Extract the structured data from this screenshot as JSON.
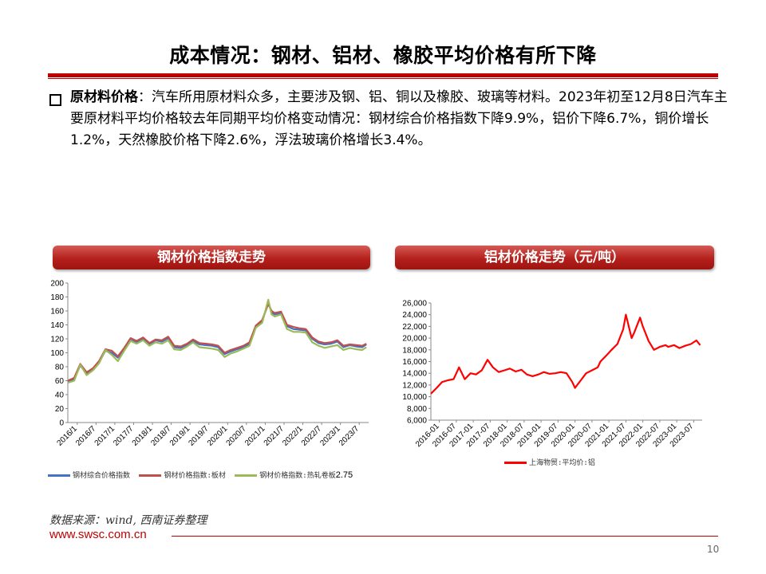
{
  "title": "成本情况：钢材、铝材、橡胶平均价格有所下降",
  "bullet": {
    "label": "原材料价格",
    "text": "：汽车所用原材料众多，主要涉及钢、铝、铜以及橡胶、玻璃等材料。2023年初至12月8日汽车主要原材料平均价格较去年同期平均价格变动情况：钢材综合价格指数下降9.9%，铝价下降6.7%，铜价增长1.2%，天然橡胶价格下降2.6%，浮法玻璃价格增长3.4%。"
  },
  "source": "数据来源：wind, 西南证券整理",
  "site": "www.swsc.com.cn",
  "page_number": "10",
  "colors": {
    "accent": "#c00000",
    "steel_composite": "#4472c4",
    "steel_plate": "#c0504d",
    "steel_hot": "#9bbb59",
    "aluminum": "#ff0000"
  },
  "chart_data": [
    {
      "type": "line",
      "title": "钢材价格指数走势",
      "ylim": [
        0,
        200
      ],
      "yticks": [
        "0",
        "20",
        "40",
        "60",
        "80",
        "100",
        "120",
        "140",
        "160",
        "180",
        "200"
      ],
      "xticks": [
        "2016/1",
        "2016/7",
        "2017/1",
        "2017/7",
        "2018/1",
        "2018/7",
        "2019/1",
        "2019/7",
        "2020/1",
        "2020/7",
        "2021/1",
        "2021/7",
        "2022/1",
        "2022/7",
        "2023/1",
        "2023/7"
      ],
      "x": [
        2016.0,
        2016.17,
        2016.33,
        2016.5,
        2016.67,
        2016.83,
        2017.0,
        2017.17,
        2017.33,
        2017.5,
        2017.67,
        2017.83,
        2018.0,
        2018.17,
        2018.33,
        2018.5,
        2018.67,
        2018.83,
        2019.0,
        2019.17,
        2019.33,
        2019.5,
        2019.67,
        2019.83,
        2020.0,
        2020.17,
        2020.33,
        2020.5,
        2020.67,
        2020.83,
        2021.0,
        2021.17,
        2021.33,
        2021.42,
        2021.5,
        2021.67,
        2021.83,
        2022.0,
        2022.17,
        2022.33,
        2022.5,
        2022.67,
        2022.83,
        2023.0,
        2023.17,
        2023.33,
        2023.5,
        2023.67,
        2023.83,
        2023.94
      ],
      "series": [
        {
          "name": "钢材综合价格指数",
          "values": [
            58,
            62,
            82,
            70,
            76,
            86,
            103,
            100,
            93,
            105,
            118,
            115,
            120,
            112,
            118,
            116,
            121,
            108,
            107,
            111,
            117,
            112,
            111,
            110,
            108,
            98,
            102,
            105,
            108,
            113,
            137,
            145,
            172,
            158,
            155,
            157,
            138,
            134,
            133,
            132,
            120,
            114,
            112,
            113,
            116,
            108,
            111,
            109,
            108,
            112
          ]
        },
        {
          "name": "钢材价格指数:板材",
          "values": [
            60,
            64,
            84,
            72,
            78,
            88,
            105,
            103,
            95,
            107,
            121,
            117,
            122,
            114,
            119,
            118,
            123,
            110,
            109,
            113,
            119,
            114,
            113,
            112,
            110,
            100,
            104,
            107,
            110,
            115,
            139,
            147,
            170,
            160,
            157,
            159,
            140,
            137,
            135,
            134,
            122,
            116,
            114,
            115,
            118,
            110,
            112,
            111,
            110,
            113
          ]
        },
        {
          "name": "钢材价格指数:热轧卷板",
          "values": [
            57,
            60,
            83,
            68,
            75,
            85,
            104,
            97,
            88,
            103,
            117,
            113,
            118,
            110,
            115,
            113,
            118,
            105,
            104,
            109,
            115,
            108,
            107,
            106,
            104,
            94,
            99,
            102,
            106,
            110,
            136,
            143,
            176,
            155,
            152,
            155,
            134,
            130,
            130,
            129,
            115,
            110,
            107,
            109,
            111,
            104,
            107,
            105,
            104,
            108
          ]
        }
      ],
      "legend_suffix": "2.75"
    },
    {
      "type": "line",
      "title": "铝材价格走势（元/吨）",
      "ylim": [
        6000,
        26000
      ],
      "yticks": [
        "6,000",
        "8,000",
        "10,000",
        "12,000",
        "14,000",
        "16,000",
        "18,000",
        "20,000",
        "22,000",
        "24,000",
        "26,000"
      ],
      "xticks": [
        "2016-01",
        "2016-07",
        "2017-01",
        "2017-07",
        "2018-01",
        "2018-07",
        "2019-01",
        "2019-07",
        "2020-01",
        "2020-07",
        "2021-01",
        "2021-07",
        "2022-01",
        "2022-07",
        "2023-01",
        "2023-07"
      ],
      "x": [
        2016.0,
        2016.17,
        2016.33,
        2016.5,
        2016.67,
        2016.83,
        2017.0,
        2017.17,
        2017.33,
        2017.5,
        2017.67,
        2017.83,
        2018.0,
        2018.17,
        2018.33,
        2018.5,
        2018.67,
        2018.83,
        2019.0,
        2019.17,
        2019.33,
        2019.5,
        2019.67,
        2019.83,
        2020.0,
        2020.17,
        2020.25,
        2020.42,
        2020.58,
        2020.75,
        2020.92,
        2021.0,
        2021.17,
        2021.33,
        2021.5,
        2021.67,
        2021.75,
        2021.92,
        2022.0,
        2022.17,
        2022.25,
        2022.42,
        2022.58,
        2022.75,
        2022.92,
        2023.0,
        2023.17,
        2023.33,
        2023.5,
        2023.67,
        2023.83,
        2023.94
      ],
      "series": [
        {
          "name": "上海物贸:平均价:铝",
          "values": [
            10500,
            11500,
            12500,
            12800,
            13000,
            15000,
            13000,
            14000,
            13800,
            14500,
            16300,
            15000,
            14200,
            14500,
            14800,
            14300,
            14600,
            13800,
            13500,
            13800,
            14200,
            13900,
            14000,
            14200,
            14000,
            12500,
            11500,
            12800,
            14000,
            14500,
            15000,
            16000,
            17000,
            18000,
            19000,
            21500,
            24000,
            20000,
            21000,
            23500,
            22000,
            19500,
            18000,
            18500,
            18800,
            18500,
            18800,
            18300,
            18700,
            19000,
            19600,
            18800
          ]
        }
      ]
    }
  ]
}
